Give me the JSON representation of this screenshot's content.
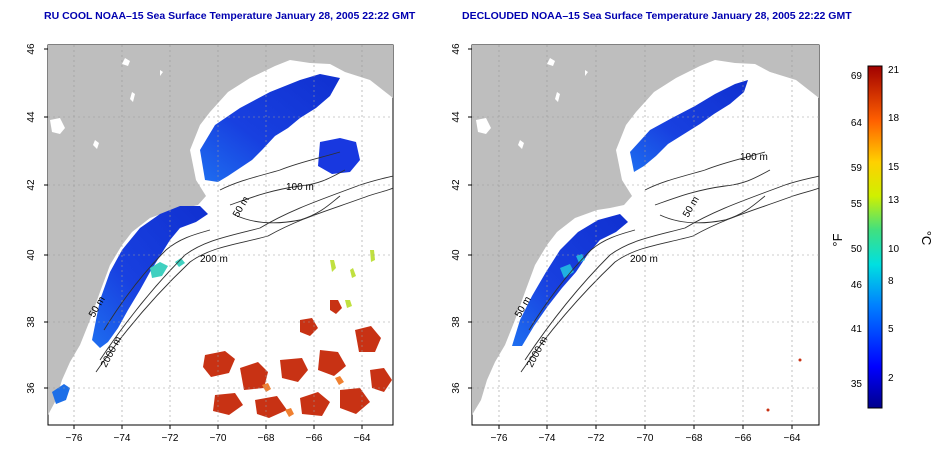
{
  "panels": [
    {
      "title": "RU COOL NOAA–15 Sea Surface Temperature January 28, 2005 22:22 GMT",
      "x_ticks": [
        "−76",
        "−74",
        "−72",
        "−70",
        "−68",
        "−66",
        "−64"
      ],
      "y_ticks": [
        "36",
        "38",
        "40",
        "42",
        "44",
        "46"
      ],
      "contour_labels": [
        "100 m",
        "50 m",
        "200 m",
        "50 m",
        "2000 m"
      ]
    },
    {
      "title": "DECLOUDED NOAA–15 Sea Surface Temperature January 28, 2005 22:22 GMT",
      "x_ticks": [
        "−76",
        "−74",
        "−72",
        "−70",
        "−68",
        "−66",
        "−64"
      ],
      "y_ticks": [
        "36",
        "38",
        "40",
        "42",
        "44",
        "46"
      ],
      "contour_labels": [
        "100 m",
        "50 m",
        "200 m",
        "50 m",
        "2000 m"
      ]
    }
  ],
  "colorbar": {
    "fahrenheit_label": "°F",
    "celsius_label": "°C",
    "fahrenheit_ticks": [
      "69",
      "64",
      "59",
      "55",
      "50",
      "46",
      "41",
      "35"
    ],
    "celsius_ticks": [
      "21",
      "18",
      "15",
      "13",
      "10",
      "8",
      "5",
      "2"
    ]
  },
  "colors": {
    "land": "#bebebe",
    "cold_sst": "#1a3ce8",
    "warm_sst": "#c83214",
    "title": "#0000b0"
  }
}
